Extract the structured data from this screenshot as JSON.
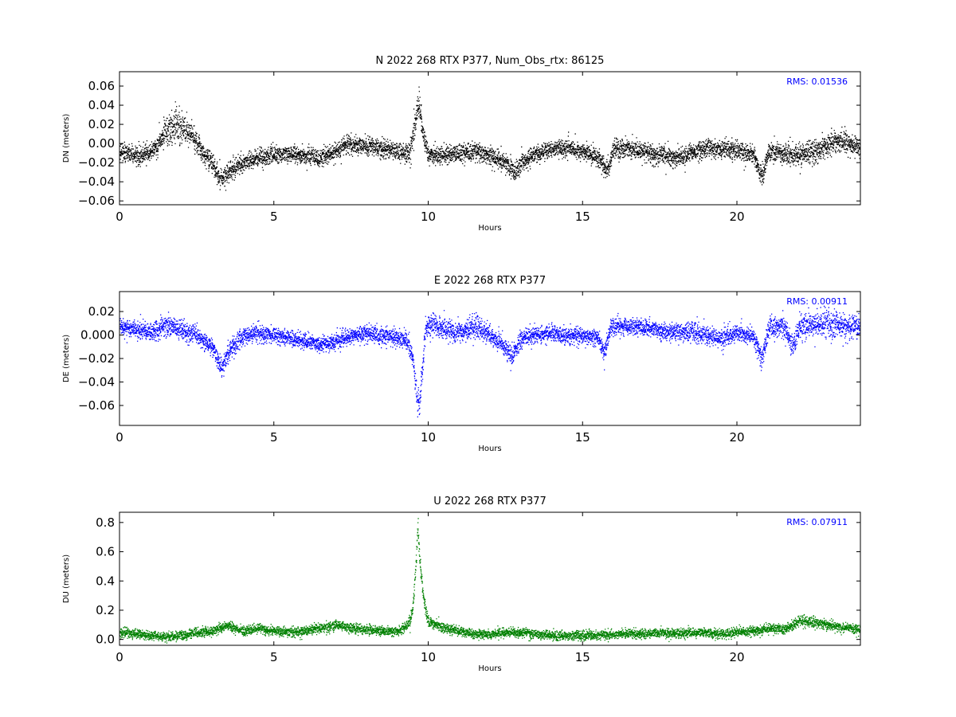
{
  "chart_data": [
    {
      "type": "scatter",
      "component": "N",
      "title": "N 2022 268 RTX  P377, Num_Obs_rtx: 86125",
      "xlabel": "Hours",
      "ylabel": "DN (meters)",
      "xlim": [
        0,
        24
      ],
      "ylim": [
        -0.064,
        0.075
      ],
      "xticks": [
        0,
        5,
        10,
        15,
        20
      ],
      "xtick_labels": [
        "0",
        "5",
        "10",
        "15",
        "20"
      ],
      "yticks": [
        -0.06,
        -0.04,
        -0.02,
        0.0,
        0.02,
        0.04,
        0.06
      ],
      "ytick_labels": [
        "−0.06",
        "−0.04",
        "−0.02",
        "0.00",
        "0.02",
        "0.04",
        "0.06"
      ],
      "color": "#000000",
      "rms_text": "RMS:  0.01536",
      "series": [
        {
          "x": [
            0.0,
            0.5,
            1.0,
            1.5,
            1.8,
            2.0,
            2.3,
            2.6,
            3.0,
            3.3,
            3.5,
            4.0,
            4.5,
            5.0,
            5.5,
            6.0,
            6.5,
            7.0,
            7.4,
            8.0,
            8.5,
            9.0,
            9.4,
            9.6,
            9.7,
            9.8,
            10.0,
            10.5,
            11.0,
            11.5,
            12.0,
            12.5,
            12.8,
            13.0,
            13.5,
            14.0,
            14.5,
            15.0,
            15.5,
            15.8,
            16.0,
            16.5,
            17.0,
            17.5,
            18.0,
            18.5,
            19.0,
            19.5,
            20.0,
            20.5,
            20.8,
            21.0,
            21.5,
            22.0,
            22.5,
            23.0,
            23.5,
            24.0
          ],
          "y": [
            -0.008,
            -0.012,
            -0.01,
            0.012,
            0.02,
            0.018,
            0.01,
            -0.005,
            -0.02,
            -0.038,
            -0.03,
            -0.02,
            -0.015,
            -0.012,
            -0.01,
            -0.012,
            -0.015,
            -0.008,
            0.0,
            -0.002,
            -0.005,
            -0.008,
            -0.01,
            0.03,
            0.045,
            0.015,
            -0.012,
            -0.012,
            -0.01,
            -0.008,
            -0.012,
            -0.02,
            -0.03,
            -0.02,
            -0.01,
            -0.005,
            -0.005,
            -0.008,
            -0.015,
            -0.03,
            -0.005,
            -0.005,
            -0.008,
            -0.012,
            -0.015,
            -0.01,
            -0.005,
            -0.005,
            -0.008,
            -0.01,
            -0.035,
            -0.008,
            -0.01,
            -0.012,
            -0.008,
            0.0,
            0.002,
            -0.005
          ],
          "spread": [
            0.01,
            0.01,
            0.011,
            0.016,
            0.018,
            0.017,
            0.015,
            0.012,
            0.012,
            0.013,
            0.012,
            0.01,
            0.01,
            0.01,
            0.01,
            0.01,
            0.01,
            0.011,
            0.011,
            0.011,
            0.011,
            0.011,
            0.012,
            0.015,
            0.018,
            0.014,
            0.011,
            0.011,
            0.011,
            0.011,
            0.011,
            0.011,
            0.012,
            0.011,
            0.01,
            0.01,
            0.01,
            0.01,
            0.011,
            0.012,
            0.011,
            0.011,
            0.011,
            0.011,
            0.011,
            0.011,
            0.011,
            0.011,
            0.011,
            0.011,
            0.013,
            0.011,
            0.011,
            0.012,
            0.013,
            0.014,
            0.013,
            0.012
          ]
        }
      ]
    },
    {
      "type": "scatter",
      "component": "E",
      "title": "E 2022 268 RTX  P377",
      "xlabel": "Hours",
      "ylabel": "DE (meters)",
      "xlim": [
        0,
        24
      ],
      "ylim": [
        -0.077,
        0.037
      ],
      "xticks": [
        0,
        5,
        10,
        15,
        20
      ],
      "xtick_labels": [
        "0",
        "5",
        "10",
        "15",
        "20"
      ],
      "yticks": [
        -0.06,
        -0.04,
        -0.02,
        0.0,
        0.02
      ],
      "ytick_labels": [
        "−0.06",
        "−0.04",
        "−0.02",
        "0.000",
        "0.02"
      ],
      "color": "#0000ff",
      "rms_text": "RMS:  0.00911",
      "series": [
        {
          "x": [
            0.0,
            0.5,
            1.0,
            1.5,
            2.0,
            2.5,
            3.0,
            3.3,
            3.5,
            4.0,
            4.5,
            5.0,
            5.5,
            6.0,
            6.5,
            7.0,
            7.5,
            8.0,
            8.5,
            9.0,
            9.3,
            9.5,
            9.6,
            9.7,
            9.9,
            10.2,
            10.5,
            11.0,
            11.5,
            12.0,
            12.5,
            12.7,
            13.0,
            13.5,
            14.0,
            14.5,
            15.0,
            15.5,
            15.7,
            15.9,
            16.5,
            17.0,
            17.5,
            18.0,
            18.5,
            19.0,
            19.5,
            20.0,
            20.5,
            20.8,
            21.0,
            21.5,
            21.8,
            22.0,
            22.5,
            23.0,
            23.5,
            24.0
          ],
          "y": [
            0.008,
            0.005,
            0.003,
            0.008,
            0.005,
            0.0,
            -0.01,
            -0.028,
            -0.015,
            0.0,
            0.002,
            0.0,
            -0.002,
            -0.005,
            -0.008,
            -0.005,
            0.0,
            0.002,
            0.0,
            -0.002,
            -0.005,
            -0.02,
            -0.05,
            -0.06,
            0.005,
            0.01,
            0.005,
            0.002,
            0.008,
            0.0,
            -0.01,
            -0.018,
            -0.002,
            0.0,
            0.002,
            0.0,
            0.0,
            -0.002,
            -0.015,
            0.008,
            0.008,
            0.006,
            0.004,
            0.002,
            0.004,
            0.0,
            -0.002,
            0.002,
            0.0,
            -0.02,
            0.005,
            0.008,
            -0.01,
            0.008,
            0.01,
            0.01,
            0.008,
            0.008
          ],
          "spread": [
            0.008,
            0.008,
            0.008,
            0.01,
            0.01,
            0.008,
            0.008,
            0.01,
            0.01,
            0.008,
            0.008,
            0.008,
            0.008,
            0.008,
            0.008,
            0.008,
            0.008,
            0.008,
            0.008,
            0.008,
            0.008,
            0.01,
            0.012,
            0.015,
            0.01,
            0.01,
            0.01,
            0.01,
            0.01,
            0.009,
            0.009,
            0.01,
            0.008,
            0.008,
            0.008,
            0.008,
            0.008,
            0.008,
            0.01,
            0.008,
            0.008,
            0.008,
            0.008,
            0.009,
            0.01,
            0.009,
            0.009,
            0.009,
            0.009,
            0.01,
            0.01,
            0.009,
            0.01,
            0.012,
            0.012,
            0.012,
            0.012,
            0.012
          ]
        }
      ]
    },
    {
      "type": "scatter",
      "component": "U",
      "title": "U 2022 268 RTX  P377",
      "xlabel": "Hours",
      "ylabel": "DU (meters)",
      "xlim": [
        0,
        24
      ],
      "ylim": [
        -0.04,
        0.87
      ],
      "xticks": [
        0,
        5,
        10,
        15,
        20
      ],
      "xtick_labels": [
        "0",
        "5",
        "10",
        "15",
        "20"
      ],
      "yticks": [
        0.0,
        0.2,
        0.4,
        0.6,
        0.8
      ],
      "ytick_labels": [
        "0.0",
        "0.2",
        "0.4",
        "0.6",
        "0.8"
      ],
      "color": "#008000",
      "rms_text": "RMS:  0.07911",
      "series": [
        {
          "x": [
            0.0,
            0.5,
            1.0,
            1.5,
            2.0,
            2.5,
            3.0,
            3.5,
            4.0,
            4.5,
            5.0,
            5.5,
            6.0,
            6.5,
            7.0,
            7.5,
            8.0,
            8.5,
            9.0,
            9.2,
            9.4,
            9.5,
            9.6,
            9.65,
            9.7,
            9.8,
            9.9,
            10.0,
            10.3,
            10.5,
            11.0,
            11.5,
            12.0,
            12.5,
            13.0,
            13.5,
            14.0,
            14.5,
            15.0,
            15.5,
            16.0,
            16.5,
            17.0,
            17.5,
            18.0,
            18.5,
            19.0,
            19.5,
            20.0,
            20.5,
            21.0,
            21.5,
            22.0,
            22.5,
            23.0,
            23.5,
            24.0
          ],
          "y": [
            0.05,
            0.04,
            0.03,
            0.02,
            0.03,
            0.05,
            0.06,
            0.1,
            0.06,
            0.08,
            0.06,
            0.05,
            0.06,
            0.08,
            0.1,
            0.08,
            0.07,
            0.06,
            0.06,
            0.08,
            0.12,
            0.25,
            0.55,
            0.78,
            0.6,
            0.35,
            0.2,
            0.12,
            0.1,
            0.08,
            0.06,
            0.04,
            0.04,
            0.05,
            0.05,
            0.04,
            0.03,
            0.03,
            0.03,
            0.03,
            0.04,
            0.04,
            0.04,
            0.05,
            0.04,
            0.05,
            0.05,
            0.04,
            0.05,
            0.06,
            0.08,
            0.07,
            0.13,
            0.12,
            0.1,
            0.08,
            0.07
          ],
          "spread": [
            0.035,
            0.035,
            0.035,
            0.035,
            0.035,
            0.035,
            0.035,
            0.035,
            0.035,
            0.035,
            0.035,
            0.035,
            0.035,
            0.035,
            0.035,
            0.035,
            0.035,
            0.035,
            0.035,
            0.04,
            0.05,
            0.06,
            0.08,
            0.08,
            0.07,
            0.06,
            0.05,
            0.045,
            0.04,
            0.04,
            0.035,
            0.035,
            0.035,
            0.035,
            0.035,
            0.035,
            0.035,
            0.035,
            0.035,
            0.035,
            0.035,
            0.035,
            0.035,
            0.035,
            0.035,
            0.035,
            0.035,
            0.035,
            0.035,
            0.035,
            0.035,
            0.035,
            0.04,
            0.04,
            0.035,
            0.035,
            0.035
          ]
        }
      ]
    }
  ]
}
